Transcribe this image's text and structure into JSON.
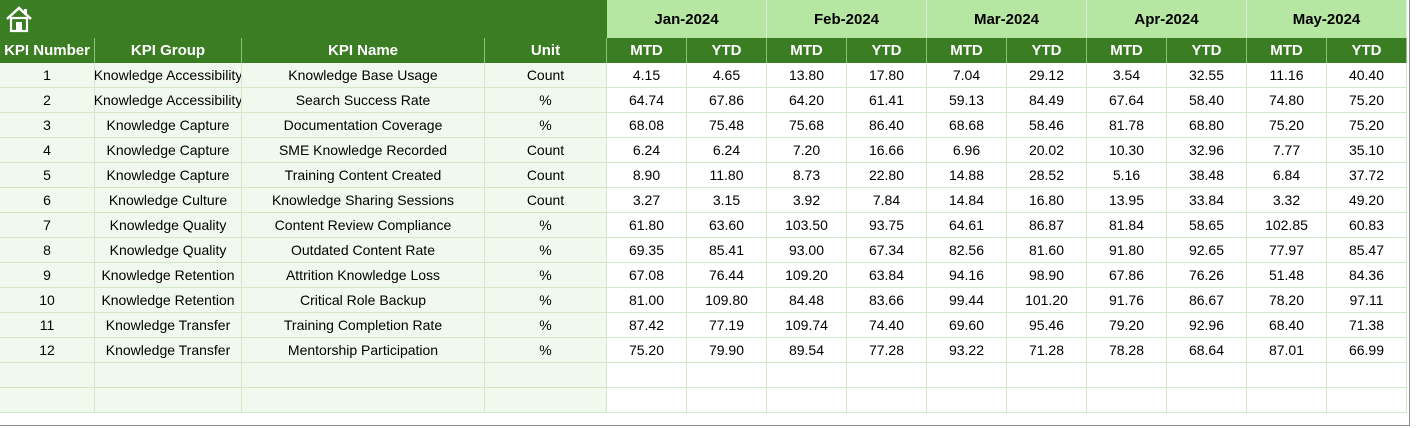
{
  "header": {
    "months": [
      "Jan-2024",
      "Feb-2024",
      "Mar-2024",
      "Apr-2024",
      "May-2024"
    ],
    "columns": [
      "KPI Number",
      "KPI Group",
      "KPI Name",
      "Unit"
    ],
    "sub": [
      "MTD",
      "YTD"
    ]
  },
  "table": {
    "rows": [
      [
        1,
        "Knowledge Accessibility",
        "Knowledge Base Usage",
        "Count",
        "4.15",
        "4.65",
        "13.80",
        "17.80",
        "7.04",
        "29.12",
        "3.54",
        "32.55",
        "11.16",
        "40.40"
      ],
      [
        2,
        "Knowledge Accessibility",
        "Search Success Rate",
        "%",
        "64.74",
        "67.86",
        "64.20",
        "61.41",
        "59.13",
        "84.49",
        "67.64",
        "58.40",
        "74.80",
        "75.20"
      ],
      [
        3,
        "Knowledge Capture",
        "Documentation Coverage",
        "%",
        "68.08",
        "75.48",
        "75.68",
        "86.40",
        "68.68",
        "58.46",
        "81.78",
        "68.80",
        "75.20",
        "75.20"
      ],
      [
        4,
        "Knowledge Capture",
        "SME Knowledge Recorded",
        "Count",
        "6.24",
        "6.24",
        "7.20",
        "16.66",
        "6.96",
        "20.02",
        "10.30",
        "32.96",
        "7.77",
        "35.10"
      ],
      [
        5,
        "Knowledge Capture",
        "Training Content Created",
        "Count",
        "8.90",
        "11.80",
        "8.73",
        "22.80",
        "14.88",
        "28.52",
        "5.16",
        "38.48",
        "6.84",
        "37.72"
      ],
      [
        6,
        "Knowledge Culture",
        "Knowledge Sharing Sessions",
        "Count",
        "3.27",
        "3.15",
        "3.92",
        "7.84",
        "14.84",
        "16.80",
        "13.95",
        "33.84",
        "3.32",
        "49.20"
      ],
      [
        7,
        "Knowledge Quality",
        "Content Review Compliance",
        "%",
        "61.80",
        "63.60",
        "103.50",
        "93.75",
        "64.61",
        "86.87",
        "81.84",
        "58.65",
        "102.85",
        "60.83"
      ],
      [
        8,
        "Knowledge Quality",
        "Outdated Content Rate",
        "%",
        "69.35",
        "85.41",
        "93.00",
        "67.34",
        "82.56",
        "81.60",
        "91.80",
        "92.65",
        "77.97",
        "85.47"
      ],
      [
        9,
        "Knowledge Retention",
        "Attrition Knowledge Loss",
        "%",
        "67.08",
        "76.44",
        "109.20",
        "63.84",
        "94.16",
        "98.90",
        "67.86",
        "76.26",
        "51.48",
        "84.36"
      ],
      [
        10,
        "Knowledge Retention",
        "Critical Role Backup",
        "%",
        "81.00",
        "109.80",
        "84.48",
        "83.66",
        "99.44",
        "101.20",
        "91.76",
        "86.67",
        "78.20",
        "97.11"
      ],
      [
        11,
        "Knowledge Transfer",
        "Training Completion Rate",
        "%",
        "87.42",
        "77.19",
        "109.74",
        "74.40",
        "69.60",
        "95.46",
        "79.20",
        "92.96",
        "68.40",
        "71.38"
      ],
      [
        12,
        "Knowledge Transfer",
        "Mentorship Participation",
        "%",
        "75.20",
        "79.90",
        "89.54",
        "77.28",
        "93.22",
        "71.28",
        "78.28",
        "68.64",
        "87.01",
        "66.99"
      ]
    ]
  }
}
